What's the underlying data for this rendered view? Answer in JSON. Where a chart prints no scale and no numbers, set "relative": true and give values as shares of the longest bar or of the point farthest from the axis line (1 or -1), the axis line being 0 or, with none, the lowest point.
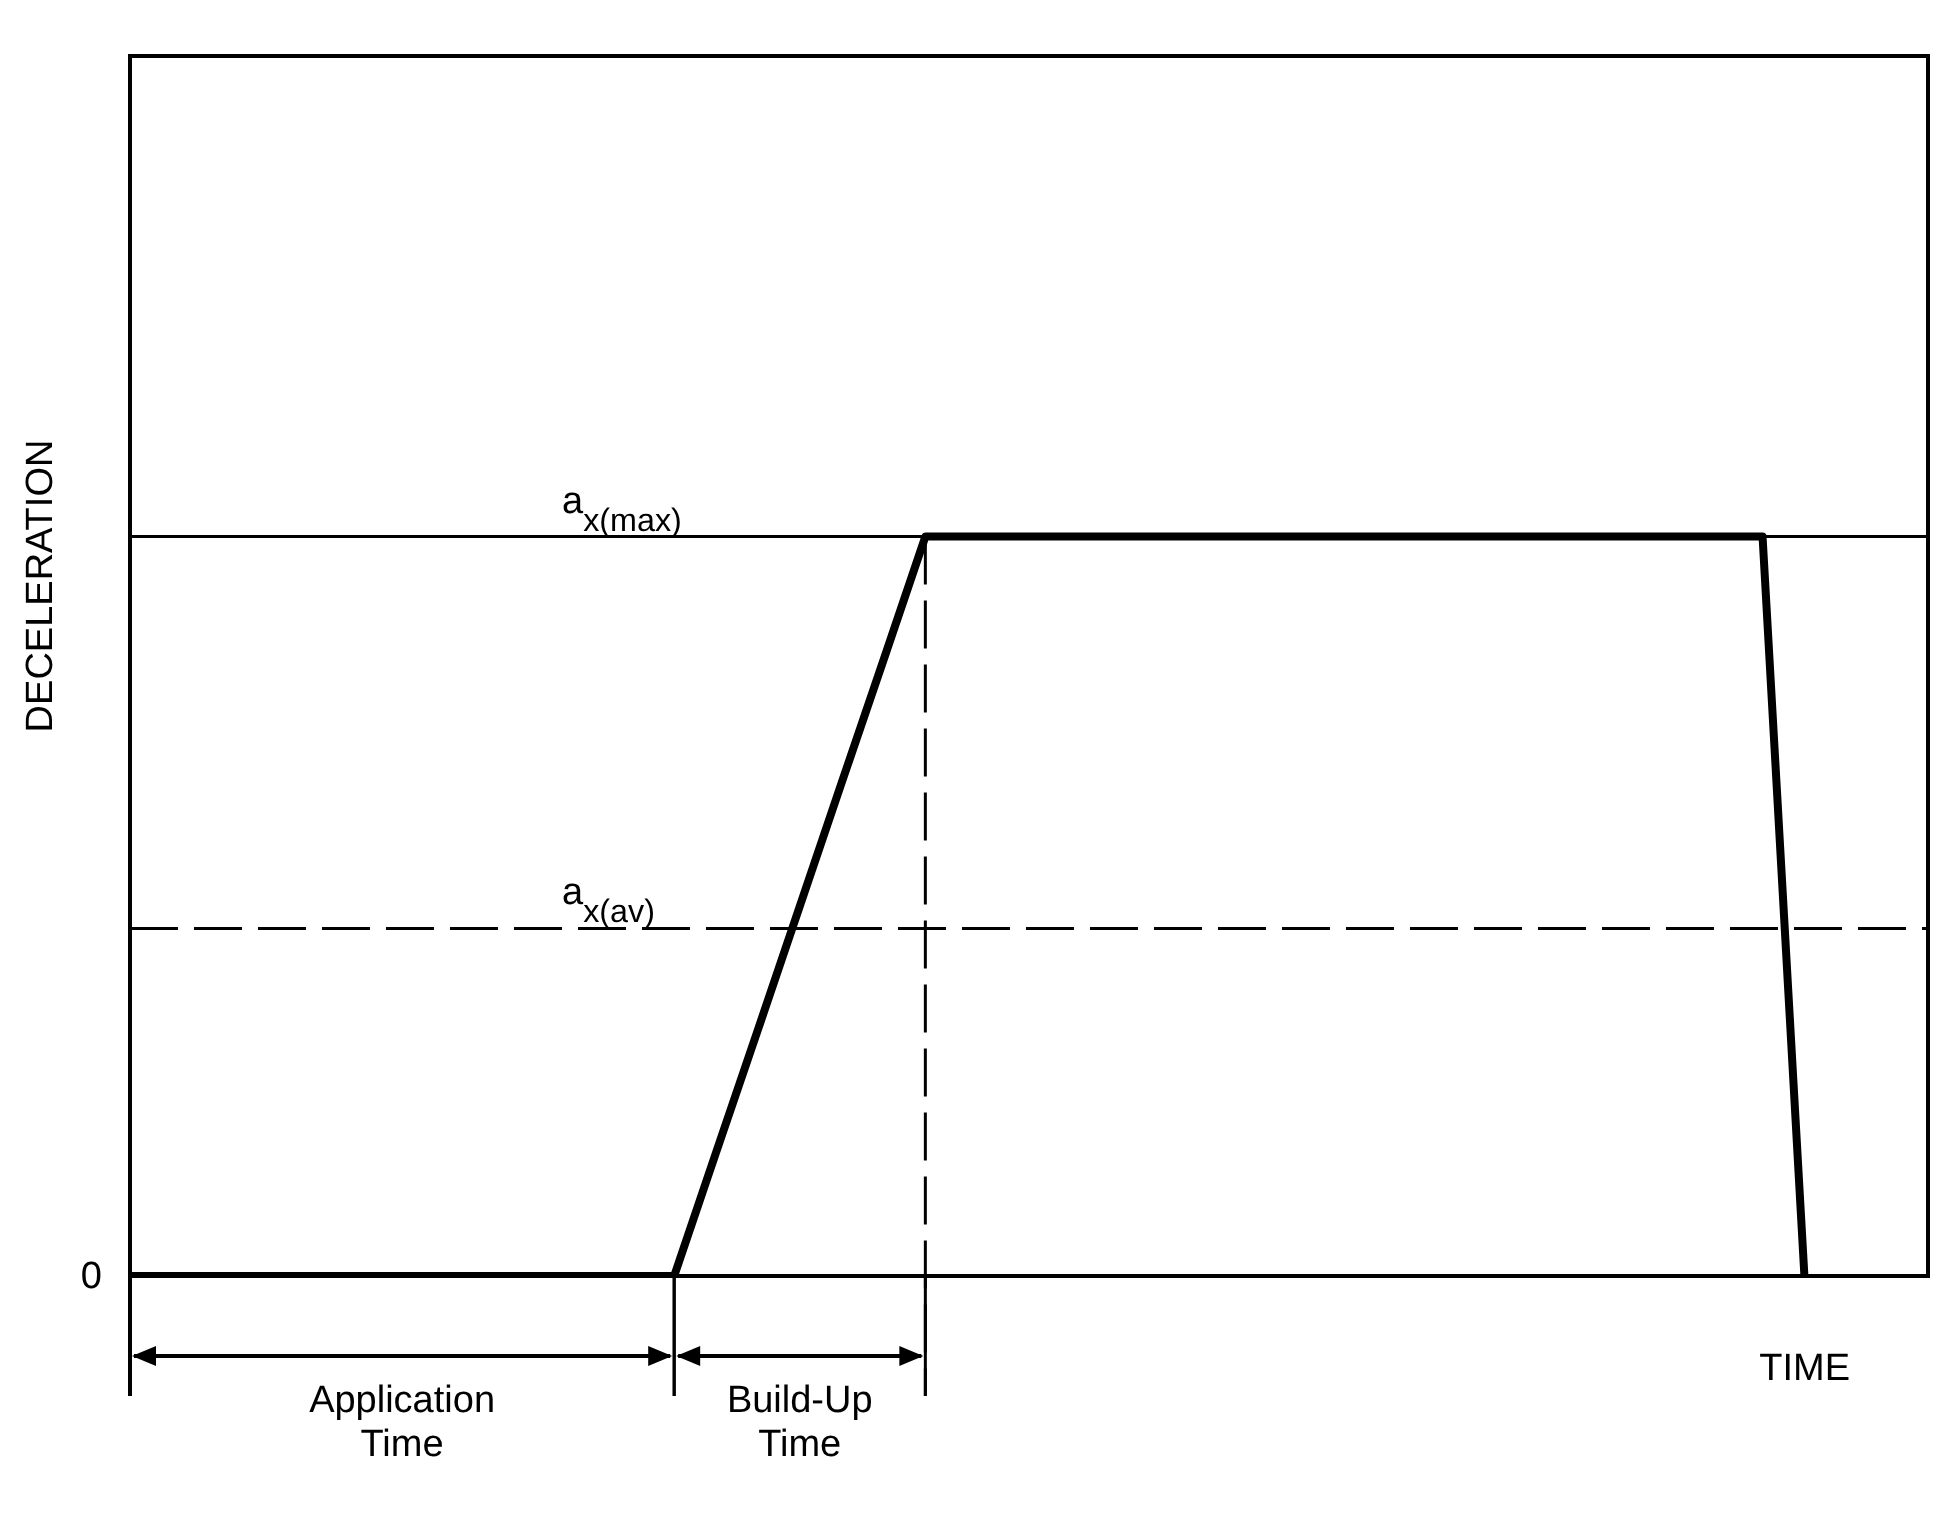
{
  "chart_data": {
    "type": "line",
    "relative": true,
    "ylabel": "DECELERATION",
    "xlabel": "TIME",
    "tick_labels": false,
    "legend": false,
    "grid": false,
    "marker": "none",
    "categories": [
      null,
      null,
      null,
      null,
      null,
      null,
      null,
      null,
      null,
      null,
      null,
      null,
      null,
      null,
      null,
      null,
      null,
      null,
      null,
      null,
      null,
      null,
      null,
      null,
      null,
      null,
      null,
      null,
      null,
      null,
      null,
      null,
      null,
      null,
      null,
      null,
      null,
      null,
      null,
      null,
      null,
      null,
      null,
      null
    ],
    "series": [
      {
        "color": "#000000",
        "values": [
          0,
          0,
          0,
          0,
          0,
          0,
          0,
          0,
          0,
          0,
          0,
          0,
          0,
          0,
          0.167,
          0.333,
          0.5,
          0.667,
          0.833,
          1,
          1,
          1,
          1,
          1,
          1,
          1,
          1,
          1,
          1,
          1,
          1,
          1,
          1,
          1,
          1,
          1,
          1,
          1,
          1,
          1,
          0,
          null,
          null,
          null
        ]
      }
    ],
    "ref_lines": [
      {
        "axis": "y",
        "value": 1,
        "label": "a$_{x(max)}$",
        "line_style": "solid"
      },
      {
        "axis": "y",
        "value": 0.47,
        "label": "a$_{x(av)}$",
        "line_style": "dashed"
      }
    ],
    "annotations": [
      "0",
      "Application Time",
      "Build-Up Time"
    ]
  }
}
